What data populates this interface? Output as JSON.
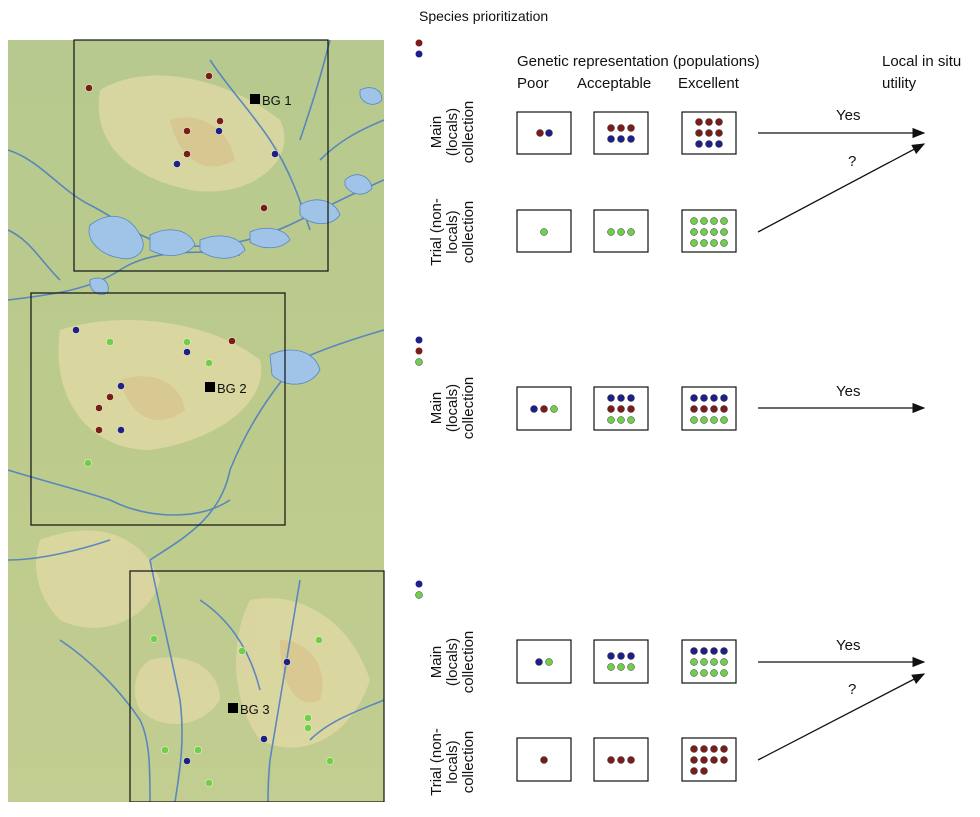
{
  "title": "Species prioritization",
  "header": {
    "genetic": "Genetic representation (populations)",
    "poor": "Poor",
    "acceptable": "Acceptable",
    "excellent": "Excellent",
    "utility_line1": "Local in situ",
    "utility_line2": "utility"
  },
  "rows": {
    "main_line1": "Main",
    "main_line2": "(locals)",
    "main_line3": "collection",
    "trial_line1": "Trial (non-",
    "trial_line2": "locals)",
    "trial_line3": "collection"
  },
  "answers": {
    "yes": "Yes",
    "maybe": "?"
  },
  "gardens": {
    "bg1": "BG 1",
    "bg2": "BG 2",
    "bg3": "BG 3"
  },
  "colors": {
    "red": "#7a1c1c",
    "blue": "#1f1f8a",
    "green": "#6fcf4a"
  }
}
